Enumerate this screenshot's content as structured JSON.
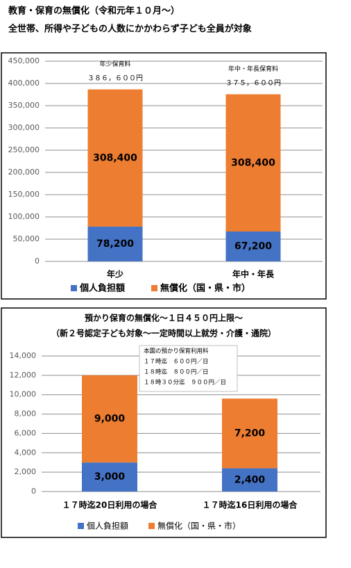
{
  "header": {
    "title": "教育・保育の無償化（令和元年１０月～）",
    "subtitle": "全世帯、所得や子どもの人数にかかわらず子ども全員が対象"
  },
  "chart_data": [
    {
      "type": "bar",
      "stacked": true,
      "categories": [
        "年少",
        "年中・年長"
      ],
      "series": [
        {
          "name": "個人負担額",
          "color": "#4472c4",
          "values": [
            78200,
            67200
          ],
          "value_labels": [
            "78,200",
            "67,200"
          ]
        },
        {
          "name": "無償化（国・県・市）",
          "color": "#ed7d31",
          "values": [
            308400,
            308400
          ],
          "value_labels": [
            "308,400",
            "308,400"
          ]
        }
      ],
      "annotations": [
        [
          "年少保育料",
          "３８６，６００円"
        ],
        [
          "年中・年長保育料",
          "３７５，６００円"
        ]
      ],
      "ylim": [
        0,
        450000
      ],
      "yticks": [
        {
          "value": 0,
          "label": "0"
        },
        {
          "value": 50000,
          "label": "50,000"
        },
        {
          "value": 100000,
          "label": "100,000"
        },
        {
          "value": 150000,
          "label": "150,000"
        },
        {
          "value": 200000,
          "label": "200,000"
        },
        {
          "value": 250000,
          "label": "250,000"
        },
        {
          "value": 300000,
          "label": "300,000"
        },
        {
          "value": 350000,
          "label": "350,000"
        },
        {
          "value": 400000,
          "label": "400,000"
        },
        {
          "value": 450000,
          "label": "450,000"
        }
      ],
      "grid": true
    },
    {
      "type": "bar",
      "stacked": true,
      "title": "預かり保育の無償化～１日４５０円上限～",
      "subtitle": "（新２号認定子ども対象～一定時間以上就労・介護・通院）",
      "categories": [
        "１７時迄20日利用の場合",
        "１７時迄16日利用の場合"
      ],
      "series": [
        {
          "name": "個人負担額",
          "color": "#4472c4",
          "values": [
            3000,
            2400
          ],
          "value_labels": [
            "3,000",
            "2,400"
          ]
        },
        {
          "name": "無償化（国・県・市）",
          "color": "#ed7d31",
          "values": [
            9000,
            7200
          ],
          "value_labels": [
            "9,000",
            "7,200"
          ]
        }
      ],
      "note": [
        "本園の預かり保育利用料",
        "１７時迄　６００円／日",
        "１８時迄　８００円／日",
        "１８時３０分迄　９００円／日"
      ],
      "ylim": [
        0,
        14000
      ],
      "yticks": [
        {
          "value": 0,
          "label": "0"
        },
        {
          "value": 2000,
          "label": "2,000"
        },
        {
          "value": 4000,
          "label": "4,000"
        },
        {
          "value": 6000,
          "label": "6,000"
        },
        {
          "value": 8000,
          "label": "8,000"
        },
        {
          "value": 10000,
          "label": "10,000"
        },
        {
          "value": 12000,
          "label": "12,000"
        },
        {
          "value": 14000,
          "label": "14,000"
        }
      ],
      "grid": true
    }
  ]
}
